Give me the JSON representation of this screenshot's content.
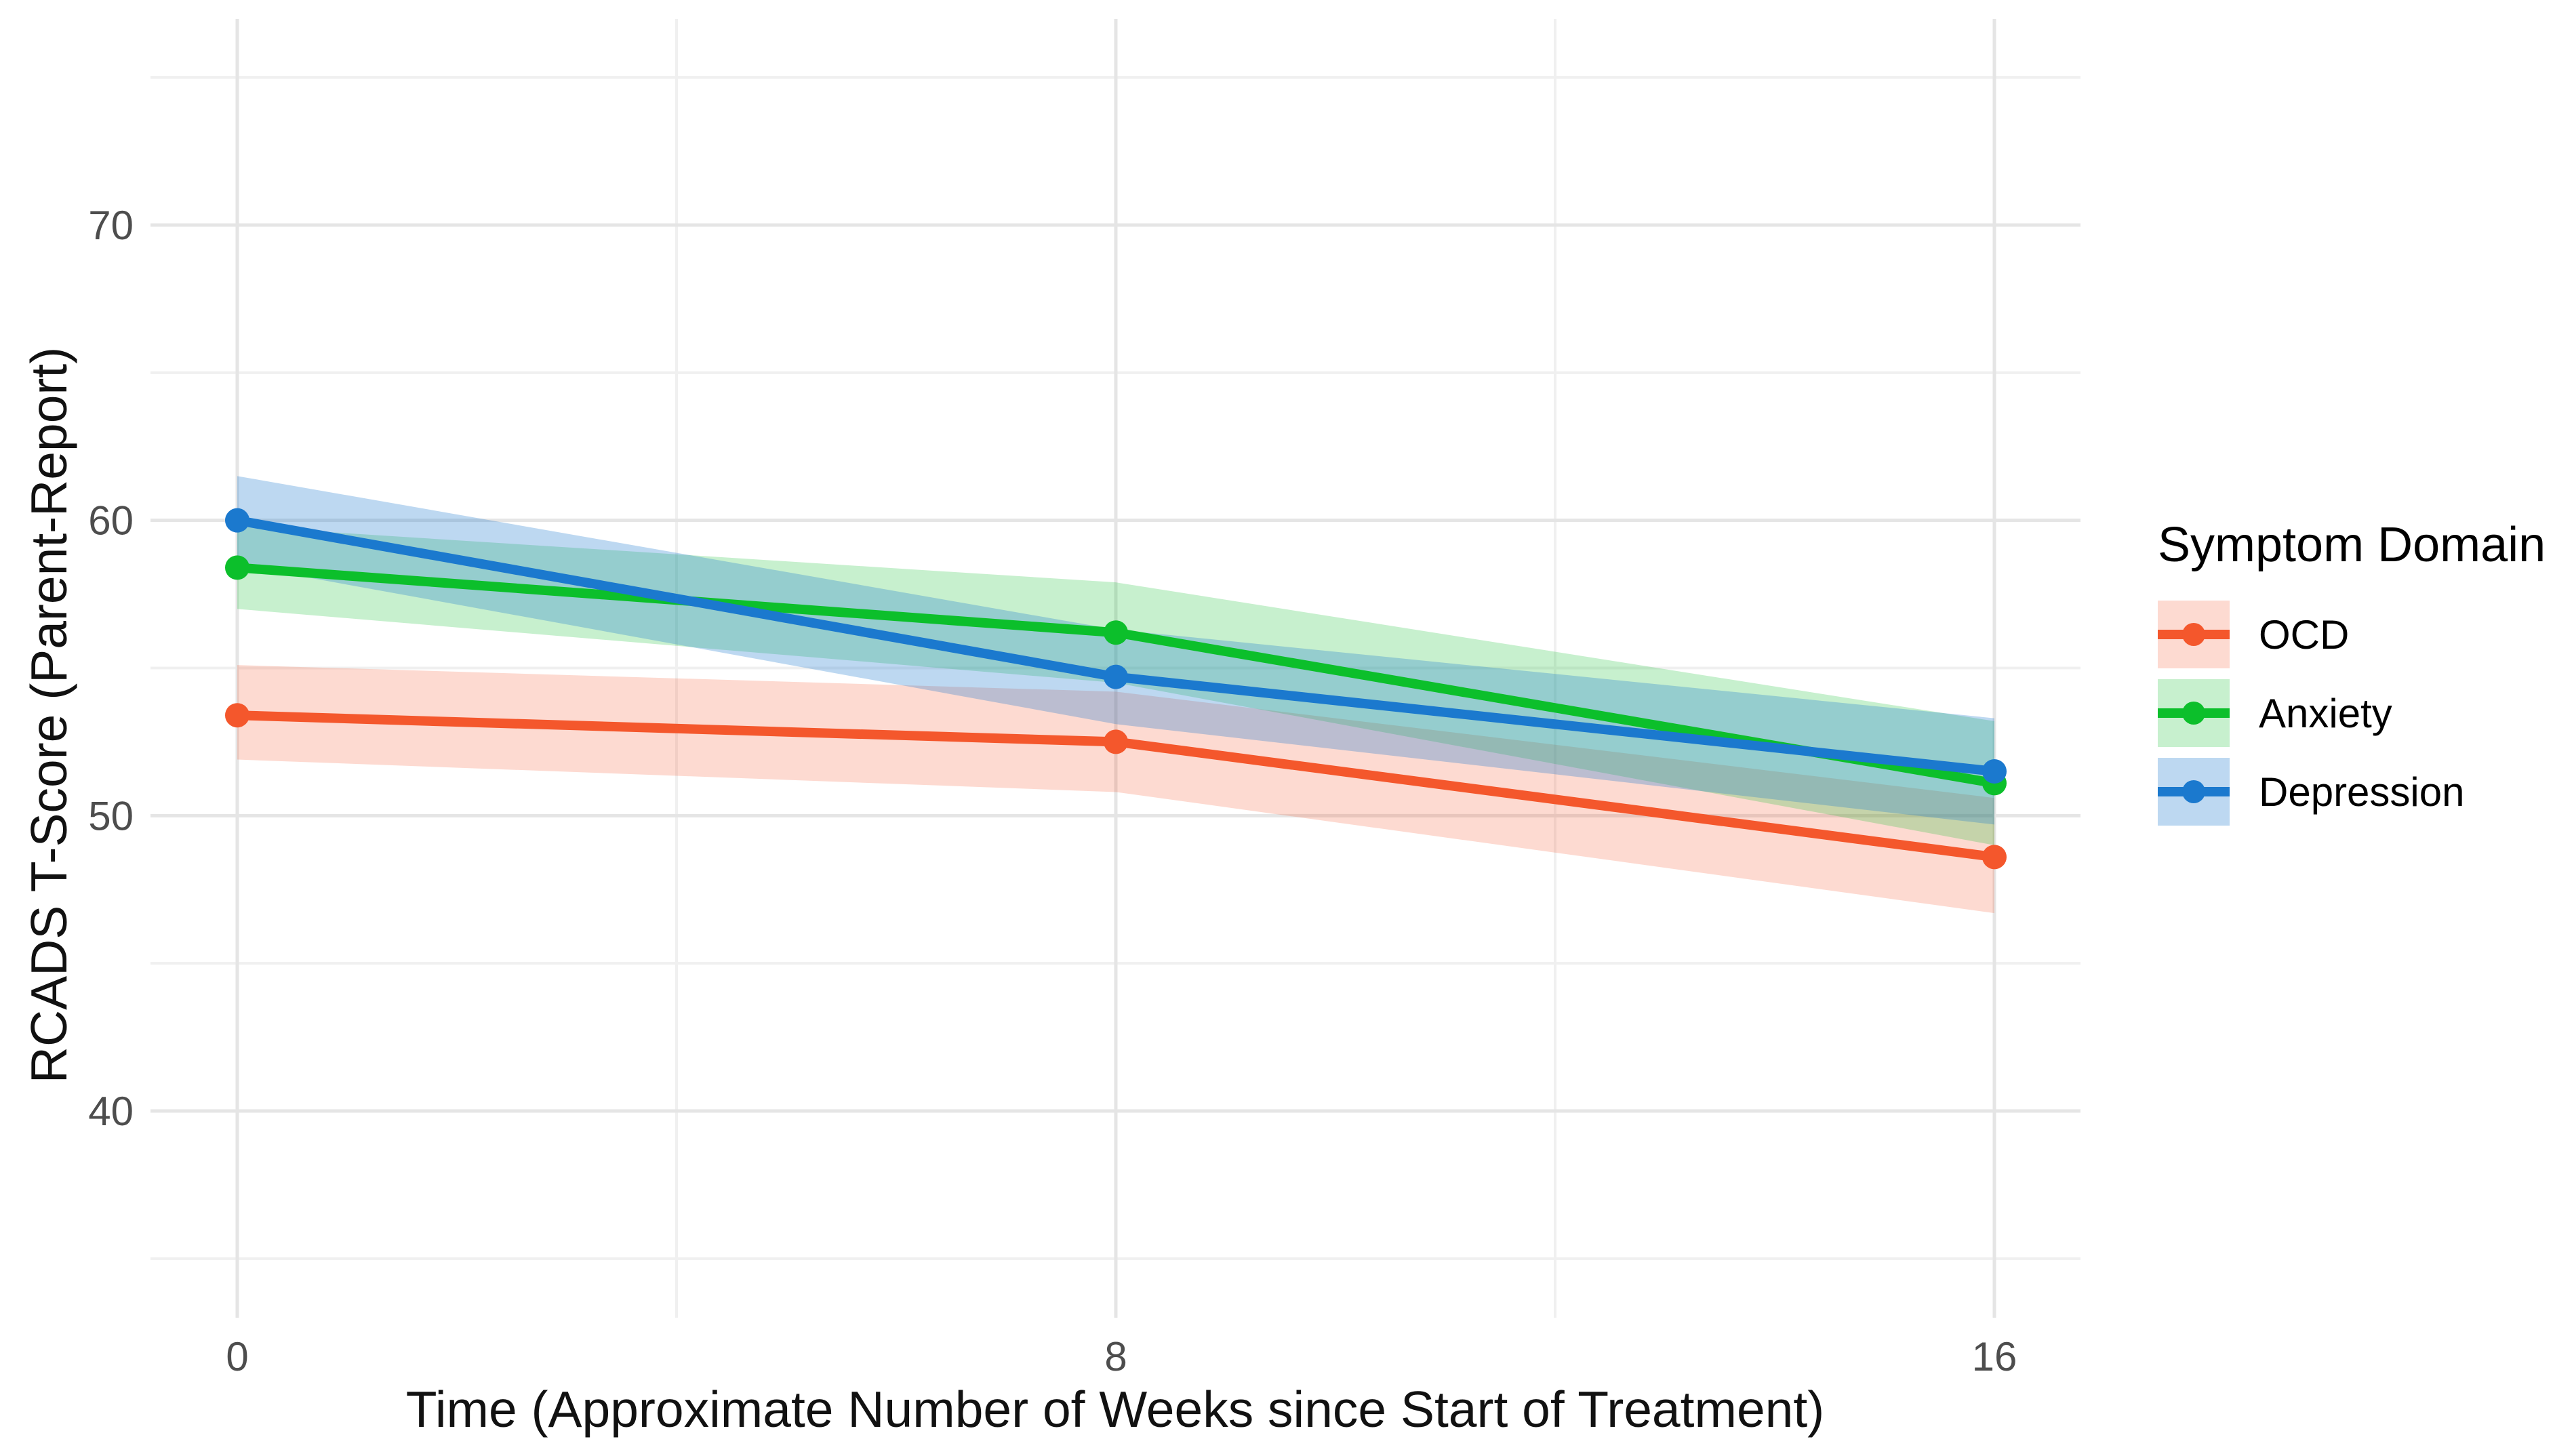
{
  "chart_data": {
    "type": "line",
    "title": "",
    "xlabel": "Time (Approximate Number of Weeks since Start of Treatment)",
    "ylabel": "RCADS T-Score (Parent-Report)",
    "x": [
      0,
      8,
      16
    ],
    "x_tick_labels": [
      "0",
      "8",
      "16"
    ],
    "x_minor_gridlines": [
      4,
      12
    ],
    "y_ticks": [
      40,
      50,
      60,
      70
    ],
    "y_tick_labels": [
      "40",
      "50",
      "60",
      "70"
    ],
    "y_minor_gridlines": [
      35,
      45,
      55,
      65,
      75
    ],
    "xlim": [
      -1.6,
      17.6
    ],
    "ylim": [
      33,
      77
    ],
    "grid": true,
    "legend": {
      "title": "Symptom Domain",
      "position": "right"
    },
    "series": [
      {
        "name": "OCD",
        "color": "#F4572C",
        "fill_opacity": 0.22,
        "values": [
          53.4,
          52.5,
          48.6
        ],
        "ci_lower": [
          51.9,
          50.8,
          46.7
        ],
        "ci_upper": [
          55.1,
          54.2,
          50.6
        ]
      },
      {
        "name": "Anxiety",
        "color": "#0CBF2B",
        "fill_opacity": 0.23,
        "values": [
          58.4,
          56.2,
          51.1
        ],
        "ci_lower": [
          57.0,
          54.5,
          49.0
        ],
        "ci_upper": [
          59.8,
          57.9,
          53.2
        ]
      },
      {
        "name": "Depression",
        "color": "#1B79CE",
        "fill_opacity": 0.29,
        "values": [
          60.0,
          54.7,
          51.5
        ],
        "ci_lower": [
          58.5,
          53.1,
          49.7
        ],
        "ci_upper": [
          61.5,
          56.3,
          53.3
        ]
      }
    ],
    "colors": {
      "tick_label": "#4d4d4d",
      "axis_title": "#111111",
      "grid_major": "#E5E5E5",
      "grid_minor": "#F0F0F0"
    }
  }
}
